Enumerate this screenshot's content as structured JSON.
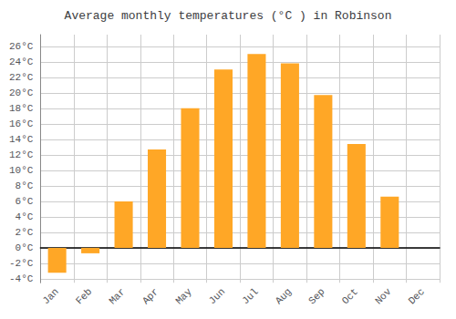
{
  "chart_data": {
    "type": "bar",
    "title": "Average monthly temperatures (°C ) in Robinson",
    "categories": [
      "Jan",
      "Feb",
      "Mar",
      "Apr",
      "May",
      "Jun",
      "Jul",
      "Aug",
      "Sep",
      "Oct",
      "Nov",
      "Dec"
    ],
    "values": [
      -3.2,
      -0.7,
      6.0,
      12.7,
      18.0,
      23.0,
      25.0,
      23.8,
      19.7,
      13.4,
      6.6,
      0.0
    ],
    "color": "#FFA726",
    "ylim": [
      -4.5,
      27.5
    ],
    "yticks": [
      {
        "value": -4,
        "label": "-4°C"
      },
      {
        "value": -2,
        "label": "-2°C"
      },
      {
        "value": 0,
        "label": "0°C"
      },
      {
        "value": 2,
        "label": "2°C"
      },
      {
        "value": 4,
        "label": "4°C"
      },
      {
        "value": 6,
        "label": "6°C"
      },
      {
        "value": 8,
        "label": "8°C"
      },
      {
        "value": 10,
        "label": "10°C"
      },
      {
        "value": 12,
        "label": "12°C"
      },
      {
        "value": 14,
        "label": "14°C"
      },
      {
        "value": 16,
        "label": "16°C"
      },
      {
        "value": 18,
        "label": "18°C"
      },
      {
        "value": 20,
        "label": "20°C"
      },
      {
        "value": 22,
        "label": "22°C"
      },
      {
        "value": 24,
        "label": "24°C"
      },
      {
        "value": 26,
        "label": "26°C"
      }
    ],
    "grid": true
  }
}
